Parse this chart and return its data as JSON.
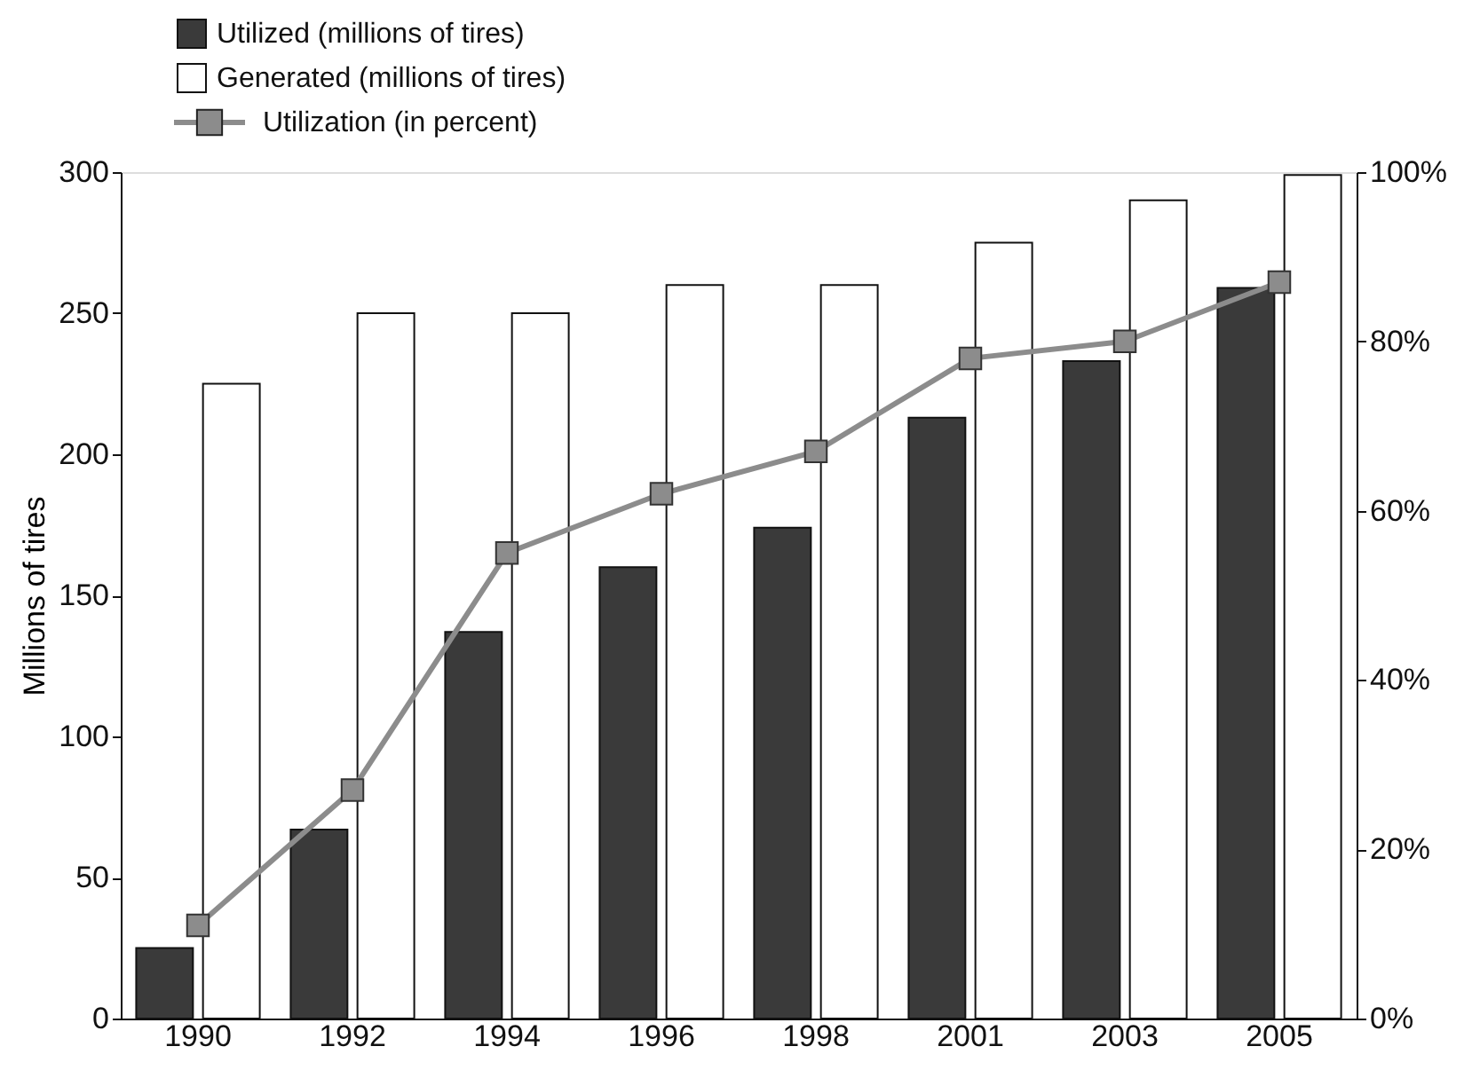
{
  "chart_data": {
    "type": "bar",
    "ylabel": "Millions of tires",
    "categories": [
      "1990",
      "1992",
      "1994",
      "1996",
      "1998",
      "2001",
      "2003",
      "2005"
    ],
    "series": [
      {
        "name": "Utilized (millions of tires)",
        "type": "bar",
        "color": "#3a3a3a",
        "values": [
          25,
          67,
          137,
          160,
          174,
          213,
          233,
          259
        ]
      },
      {
        "name": "Generated (millions of tires)",
        "type": "bar",
        "color": "#ffffff",
        "values": [
          225,
          250,
          250,
          260,
          260,
          275,
          290,
          299
        ]
      },
      {
        "name": "Utilization (in percent)",
        "type": "line",
        "axis": "y2",
        "color": "#8c8c8c",
        "values": [
          11,
          27,
          55,
          62,
          67,
          78,
          80,
          87
        ]
      }
    ],
    "ylim": [
      0,
      300
    ],
    "yticks": [
      0,
      50,
      100,
      150,
      200,
      250,
      300
    ],
    "y2lim": [
      0,
      100
    ],
    "y2ticks": [
      {
        "value": 0,
        "label": "0%"
      },
      {
        "value": 20,
        "label": "20%"
      },
      {
        "value": 40,
        "label": "40%"
      },
      {
        "value": 60,
        "label": "60%"
      },
      {
        "value": 80,
        "label": "80%"
      },
      {
        "value": 100,
        "label": "100%"
      }
    ],
    "grid": false,
    "legend": "top left",
    "marker": "square",
    "line_style": "solid"
  }
}
